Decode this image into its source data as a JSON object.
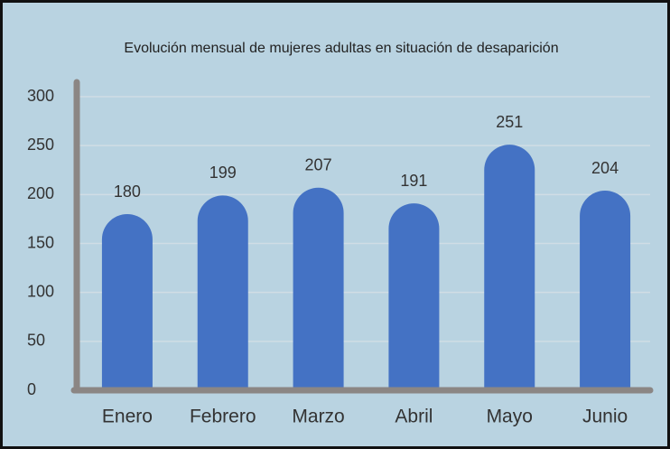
{
  "chart_data": {
    "type": "bar",
    "title": "Evolución mensual de mujeres adultas en situación de desaparición",
    "categories": [
      "Enero",
      "Febrero",
      "Marzo",
      "Abril",
      "Mayo",
      "Junio"
    ],
    "values": [
      180,
      199,
      207,
      191,
      251,
      204
    ],
    "color": "#4472c4",
    "ylim": [
      0,
      300
    ],
    "yticks": [
      0,
      50,
      100,
      150,
      200,
      250,
      300
    ],
    "grid": true
  }
}
